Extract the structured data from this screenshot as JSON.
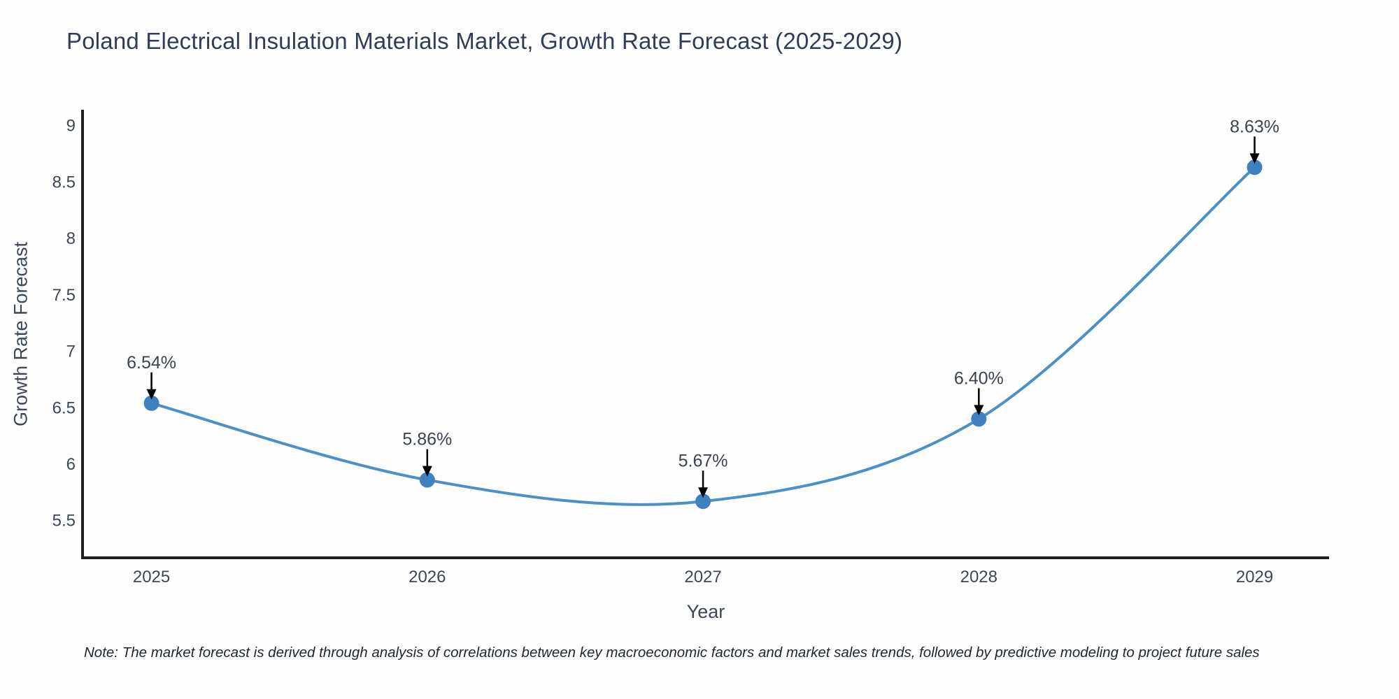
{
  "title": "Poland Electrical Insulation Materials Market, Growth Rate Forecast (2025-2029)",
  "note": "Note: The market forecast is derived through analysis of correlations between key macroeconomic factors and market sales trends, followed by predictive modeling to project future sales",
  "chart_data": {
    "type": "line",
    "title": "Poland Electrical Insulation Materials Market, Growth Rate Forecast (2025-2029)",
    "xlabel": "Year",
    "ylabel": "Growth Rate Forecast",
    "x": [
      2025,
      2026,
      2027,
      2028,
      2029
    ],
    "series": [
      {
        "name": "Growth Rate Forecast",
        "values": [
          6.54,
          5.86,
          5.67,
          6.4,
          8.63
        ]
      }
    ],
    "point_labels": [
      "6.54%",
      "5.86%",
      "5.67%",
      "6.40%",
      "8.63%"
    ],
    "yticks": [
      5.5,
      6,
      6.5,
      7,
      7.5,
      8,
      8.5,
      9
    ],
    "ylim": [
      5.17,
      9.14
    ],
    "xlim": [
      2024.75,
      2029.27
    ],
    "grid": false,
    "legend": false,
    "line_shape": "spline",
    "colors": {
      "line": "#4a90c9",
      "marker": "#3e81c0",
      "axis": "#1f1f1f",
      "tick_text": "#3d4754",
      "title_text": "#313d56",
      "annotation_arrow": "#000000"
    }
  }
}
